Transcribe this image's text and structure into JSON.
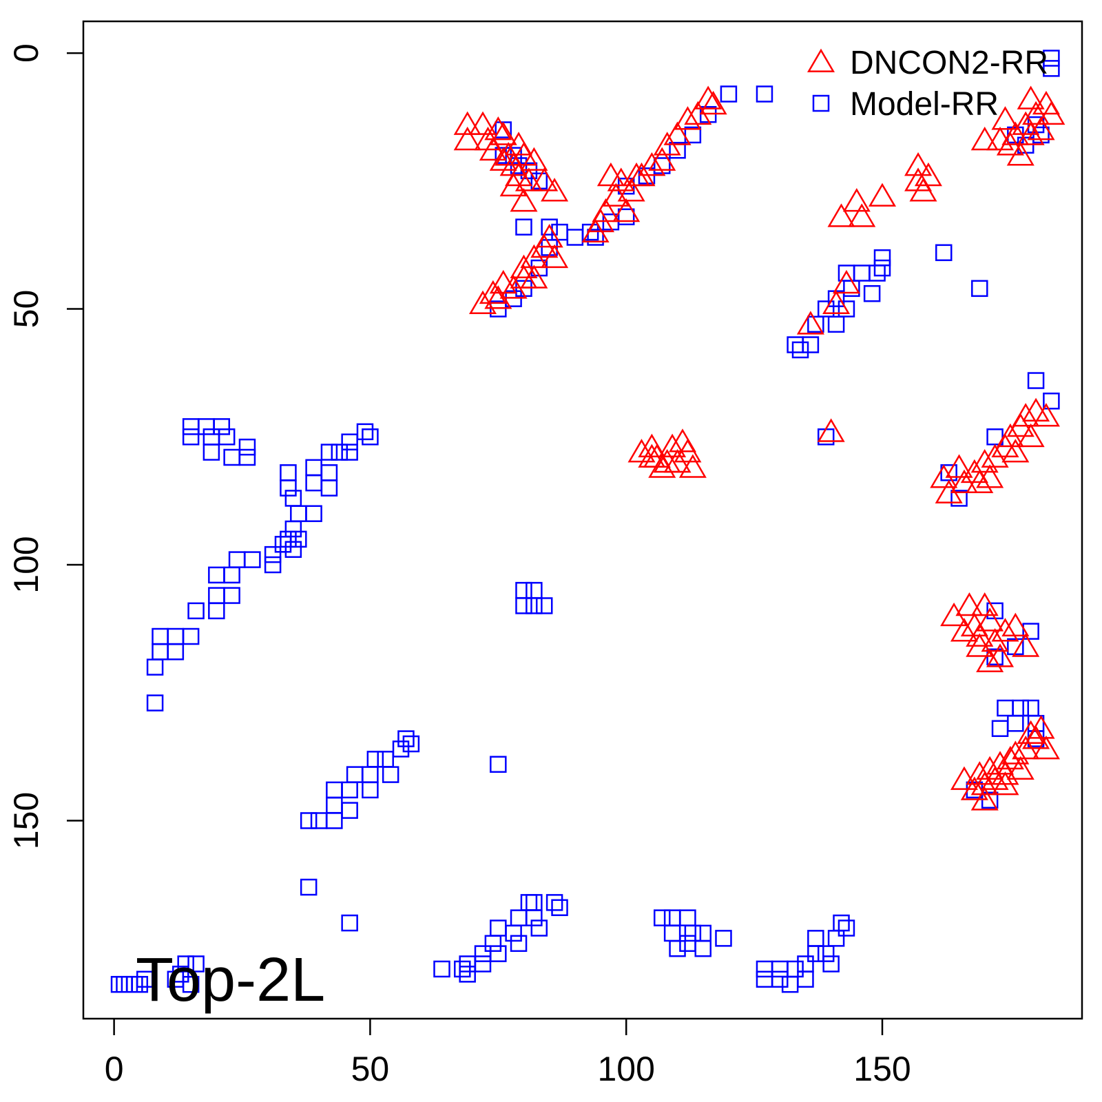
{
  "chart_data": {
    "type": "scatter",
    "annotation": "Top-2L",
    "legend": "top-right",
    "xlim": [
      -6,
      189
    ],
    "ylim": [
      188.7,
      -6.2
    ],
    "xticks": [
      0,
      50,
      100,
      150
    ],
    "yticks": [
      0,
      50,
      100,
      150
    ],
    "series": [
      {
        "name": "DNCON2-RR",
        "color": "#ff0000",
        "marker": "triangle",
        "x": [
          69,
          69,
          72,
          73,
          75,
          74,
          76,
          77,
          78,
          79,
          80,
          79,
          81,
          82,
          84,
          86,
          80,
          76,
          78,
          72,
          74,
          75,
          76,
          78,
          80,
          80,
          82,
          82,
          84,
          85,
          86,
          94,
          95,
          96,
          98,
          99,
          101,
          103,
          105,
          107,
          108,
          110,
          112,
          114,
          116,
          117,
          97,
          100,
          102,
          103,
          105,
          106,
          107,
          108,
          109,
          110,
          111,
          112,
          113,
          105,
          140,
          141,
          136,
          143,
          146,
          145,
          150,
          142,
          157,
          158,
          157,
          159,
          170,
          173,
          175,
          176,
          178,
          179,
          180,
          181,
          182,
          183,
          179,
          177,
          174,
          162,
          163,
          166,
          168,
          170,
          172,
          174,
          175,
          177,
          178,
          180,
          182,
          169,
          171,
          176,
          179,
          165,
          164,
          166,
          167,
          168,
          169,
          170,
          171,
          172,
          173,
          174,
          176,
          178,
          171,
          169,
          166,
          168,
          169,
          170,
          171,
          172,
          173,
          174,
          175,
          176,
          178,
          179,
          180,
          181,
          182,
          170,
          174,
          177
        ],
        "values": [
          14,
          17,
          14,
          17,
          15,
          19,
          16,
          20,
          22,
          18,
          20,
          24,
          25,
          21,
          25,
          27,
          29,
          21,
          26,
          49,
          47,
          48,
          45,
          46,
          42,
          44,
          40,
          44,
          38,
          36,
          40,
          35,
          33,
          31,
          28,
          25,
          27,
          24,
          22,
          21,
          18,
          16,
          13,
          12,
          9,
          10,
          24,
          31,
          24,
          78,
          77,
          79,
          81,
          80,
          77,
          80,
          76,
          78,
          81,
          79,
          74,
          49,
          53,
          45,
          32,
          29,
          28,
          32,
          25,
          27,
          22,
          24,
          17,
          17,
          18,
          16,
          14,
          16,
          12,
          15,
          10,
          12,
          9,
          20,
          13,
          83,
          86,
          84,
          82,
          80,
          79,
          77,
          75,
          73,
          71,
          70,
          71,
          84,
          83,
          78,
          75,
          81,
          110,
          113,
          108,
          112,
          114,
          108,
          111,
          115,
          118,
          113,
          112,
          116,
          119,
          116,
          142,
          144,
          141,
          143,
          140,
          142,
          139,
          141,
          138,
          137,
          136,
          133,
          134,
          132,
          136,
          146,
          143,
          140
        ]
      },
      {
        "name": "Model-RR",
        "color": "#0000ff",
        "marker": "square",
        "x": [
          1,
          2,
          3,
          4,
          5,
          6,
          12,
          14,
          16,
          13,
          15,
          15,
          15,
          18,
          19,
          19,
          21,
          22,
          23,
          26,
          26,
          8,
          8,
          9,
          12,
          12,
          9,
          15,
          16,
          20,
          20,
          20,
          23,
          23,
          24,
          27,
          31,
          31,
          33,
          34,
          35,
          36,
          35,
          36,
          35,
          34,
          34,
          39,
          39,
          39,
          42,
          42,
          42,
          44,
          46,
          46,
          49,
          50,
          38,
          40,
          43,
          43,
          43,
          46,
          46,
          47,
          50,
          50,
          51,
          53,
          54,
          56,
          57,
          58,
          38,
          46,
          64,
          68,
          69,
          69,
          72,
          72,
          74,
          75,
          75,
          78,
          79,
          79,
          82,
          82,
          83,
          86,
          87,
          81,
          75,
          80,
          80,
          82,
          82,
          84,
          107,
          109,
          109,
          112,
          113,
          112,
          115,
          115,
          119,
          110,
          127,
          127,
          130,
          130,
          132,
          133,
          135,
          135,
          137,
          137,
          139,
          140,
          141,
          142,
          143,
          76,
          76,
          78,
          79,
          81,
          83,
          80,
          85,
          87,
          90,
          93,
          94,
          97,
          100,
          100,
          104,
          107,
          110,
          113,
          116,
          120,
          127,
          75,
          78,
          80,
          83,
          85,
          162,
          169,
          183,
          183,
          181,
          178,
          180,
          176,
          133,
          134,
          136,
          137,
          139,
          141,
          141,
          143,
          144,
          143,
          146,
          148,
          149,
          150,
          150,
          180,
          139,
          163,
          165,
          172,
          183,
          172,
          172,
          176,
          179,
          174,
          177,
          179,
          180,
          180,
          173,
          176,
          168,
          171
        ],
        "values": [
          182,
          182,
          182,
          182,
          182,
          181,
          181,
          178,
          178,
          180,
          182,
          73,
          75,
          73,
          75,
          78,
          73,
          75,
          79,
          77,
          79,
          127,
          120,
          117,
          117,
          114,
          114,
          114,
          109,
          109,
          106,
          102,
          102,
          106,
          99,
          99,
          98,
          100,
          96,
          95,
          97,
          95,
          93,
          90,
          87,
          85,
          82,
          90,
          84,
          81,
          85,
          82,
          78,
          78,
          78,
          76,
          74,
          75,
          150,
          150,
          150,
          147,
          144,
          144,
          148,
          141,
          141,
          144,
          138,
          138,
          141,
          136,
          134,
          135,
          163,
          170,
          179,
          179,
          180,
          178,
          176,
          178,
          174,
          176,
          171,
          172,
          169,
          174,
          169,
          166,
          171,
          166,
          167,
          166,
          139,
          105,
          108,
          105,
          108,
          108,
          169,
          169,
          172,
          169,
          172,
          174,
          172,
          175,
          173,
          175,
          179,
          181,
          179,
          181,
          182,
          179,
          178,
          181,
          176,
          173,
          176,
          178,
          173,
          170,
          171,
          15,
          20,
          20,
          22,
          23,
          25,
          34,
          34,
          35,
          36,
          35,
          36,
          33,
          32,
          26,
          24,
          22,
          19,
          16,
          12,
          8,
          8,
          50,
          48,
          46,
          42,
          38,
          39,
          46,
          1,
          3,
          16,
          18,
          14,
          16,
          57,
          58,
          57,
          53,
          50,
          53,
          48,
          50,
          46,
          43,
          43,
          47,
          43,
          40,
          42,
          64,
          75,
          82,
          87,
          75,
          68,
          109,
          118,
          116,
          113,
          128,
          128,
          128,
          131,
          134,
          132,
          131,
          144,
          146
        ]
      }
    ]
  }
}
